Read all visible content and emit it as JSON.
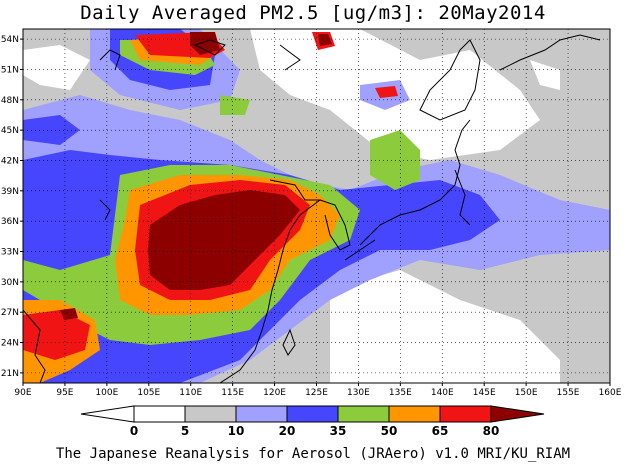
{
  "title": "Daily Averaged PM2.5 [ug/m3]: 20May2014",
  "footer": "The Japanese Reanalysis for Aerosol (JRAero) v1.0 MRI/KU_RIAM",
  "map": {
    "lon_range": [
      90,
      160
    ],
    "lat_range": [
      20,
      55
    ],
    "lon_ticks": [
      "90E",
      "95E",
      "100E",
      "105E",
      "110E",
      "115E",
      "120E",
      "125E",
      "130E",
      "135E",
      "140E",
      "145E",
      "150E",
      "155E",
      "160E"
    ],
    "lat_ticks": [
      "54N",
      "51N",
      "48N",
      "45N",
      "42N",
      "39N",
      "36N",
      "33N",
      "30N",
      "27N",
      "24N",
      "21N"
    ],
    "grid_lines": "dotted"
  },
  "colorbar": {
    "levels": [
      "0",
      "5",
      "10",
      "20",
      "35",
      "50",
      "65",
      "80"
    ],
    "colors": [
      "#ffffff",
      "#c8c8c8",
      "#a0a0ff",
      "#4646ff",
      "#8ccc3c",
      "#ff9600",
      "#f01414",
      "#8c0000"
    ]
  }
}
